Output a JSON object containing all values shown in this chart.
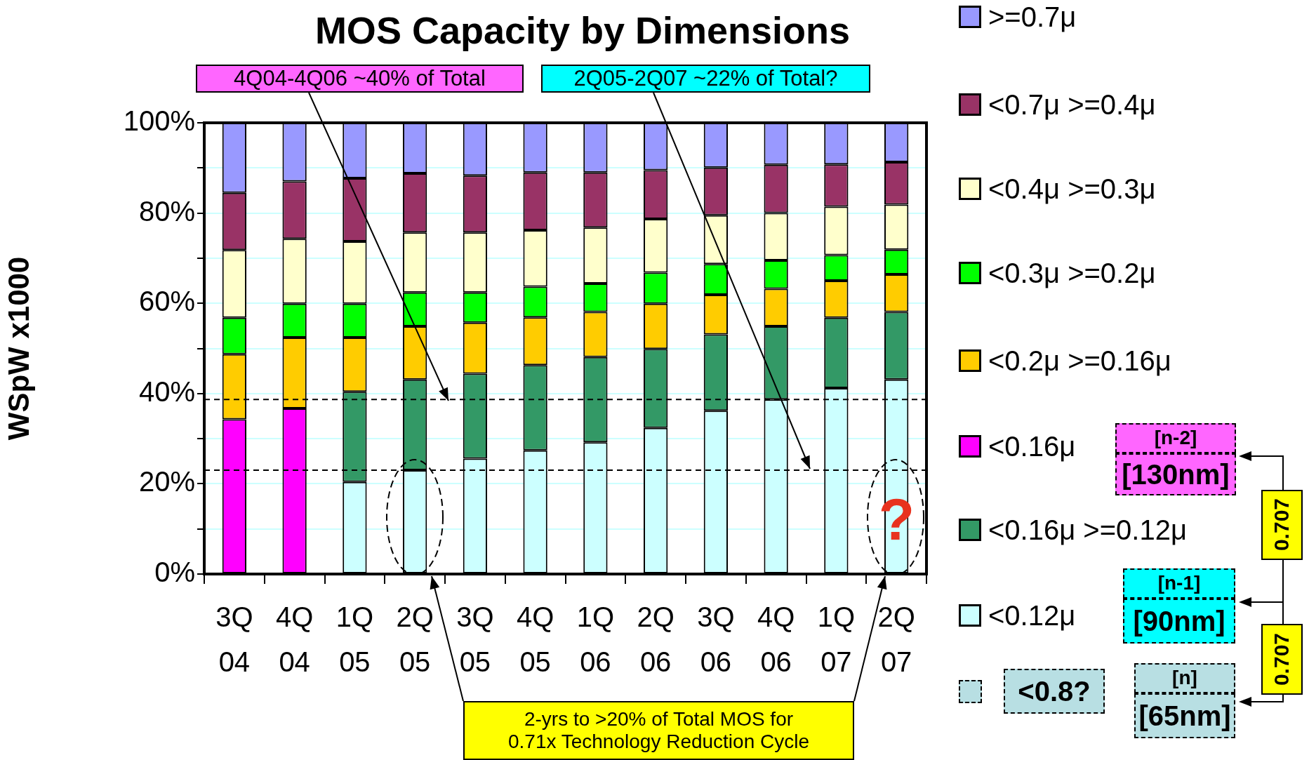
{
  "chart_data": {
    "type": "bar",
    "title": "MOS Capacity by Dimensions",
    "ylabel": "WSpW x1000",
    "categories": [
      "3Q 04",
      "4Q 04",
      "1Q 05",
      "2Q 05",
      "3Q 05",
      "4Q 05",
      "1Q 06",
      "2Q 06",
      "3Q 06",
      "4Q 06",
      "1Q 07",
      "2Q 07"
    ],
    "stacked": true,
    "grid": "y",
    "legend": "right",
    "ylim": [
      0,
      100
    ],
    "yticks": [
      {
        "value": 0,
        "label": "0%"
      },
      {
        "value": 10,
        "label": null
      },
      {
        "value": 20,
        "label": "20%"
      },
      {
        "value": 30,
        "label": null
      },
      {
        "value": 40,
        "label": "40%"
      },
      {
        "value": 50,
        "label": null
      },
      {
        "value": 60,
        "label": "60%"
      },
      {
        "value": 70,
        "label": null
      },
      {
        "value": 80,
        "label": "80%"
      },
      {
        "value": 90,
        "label": null
      },
      {
        "value": 100,
        "label": "100%"
      }
    ],
    "series": [
      {
        "name": "<0.12μ",
        "color": "#ccffff",
        "values": [
          null,
          null,
          20.4,
          23.0,
          25.6,
          27.4,
          29.2,
          32.4,
          36.2,
          38.7,
          41.2,
          43.1
        ]
      },
      {
        "name": "<0.16μ >=0.12μ",
        "color": "#339966",
        "values": [
          null,
          null,
          20.0,
          20.1,
          18.8,
          18.9,
          18.9,
          17.5,
          16.9,
          16.2,
          15.6,
          15.0
        ]
      },
      {
        "name": "<0.16μ",
        "color": "#ff00ff",
        "values": [
          34.3,
          36.7,
          null,
          null,
          null,
          null,
          null,
          null,
          null,
          null,
          null,
          null
        ]
      },
      {
        "name": "<0.2μ >=0.16μ",
        "color": "#ffcc00",
        "values": [
          14.4,
          15.7,
          12.0,
          11.8,
          11.3,
          10.6,
          10.0,
          10.0,
          8.8,
          8.3,
          8.2,
          8.3
        ]
      },
      {
        "name": "<0.3μ >=0.2μ",
        "color": "#00ff00",
        "values": [
          8.1,
          7.5,
          7.5,
          7.5,
          6.7,
          6.8,
          6.3,
          6.9,
          6.8,
          6.3,
          5.7,
          5.5
        ]
      },
      {
        "name": "<0.4μ >=0.3μ",
        "color": "#ffffcc",
        "values": [
          15.0,
          14.4,
          13.8,
          13.3,
          13.3,
          12.5,
          12.4,
          11.9,
          10.8,
          10.5,
          10.7,
          10.0
        ]
      },
      {
        "name": "<0.7μ >=0.4μ",
        "color": "#993366",
        "values": [
          12.7,
          12.7,
          14.0,
          13.1,
          12.6,
          12.8,
          12.2,
          10.8,
          10.6,
          10.7,
          9.4,
          9.4
        ]
      },
      {
        "name": ">=0.7μ",
        "color": "#9999ff",
        "values": [
          15.5,
          13.0,
          12.3,
          11.2,
          11.7,
          11.0,
          11.0,
          10.5,
          9.9,
          9.3,
          9.2,
          8.7
        ]
      }
    ],
    "ref_lines": [
      {
        "axis": "y",
        "value": 38.7,
        "line_style": "dashed",
        "color": "#000000"
      },
      {
        "axis": "y",
        "value": 23.0,
        "line_style": "dashed",
        "color": "#000000"
      }
    ],
    "annotations": [
      "4Q04-4Q06 ~40% of Total",
      "2Q05-2Q07 ~22% of Total?",
      "2-yrs to >20% of Total MOS for 0.71x Technology Reduction Cycle",
      "?",
      "[n-2]",
      "[130nm]",
      "[n-1]",
      "[90nm]",
      "[n]",
      "[65nm]",
      "0.707",
      "0.707",
      "<0.8?"
    ]
  }
}
